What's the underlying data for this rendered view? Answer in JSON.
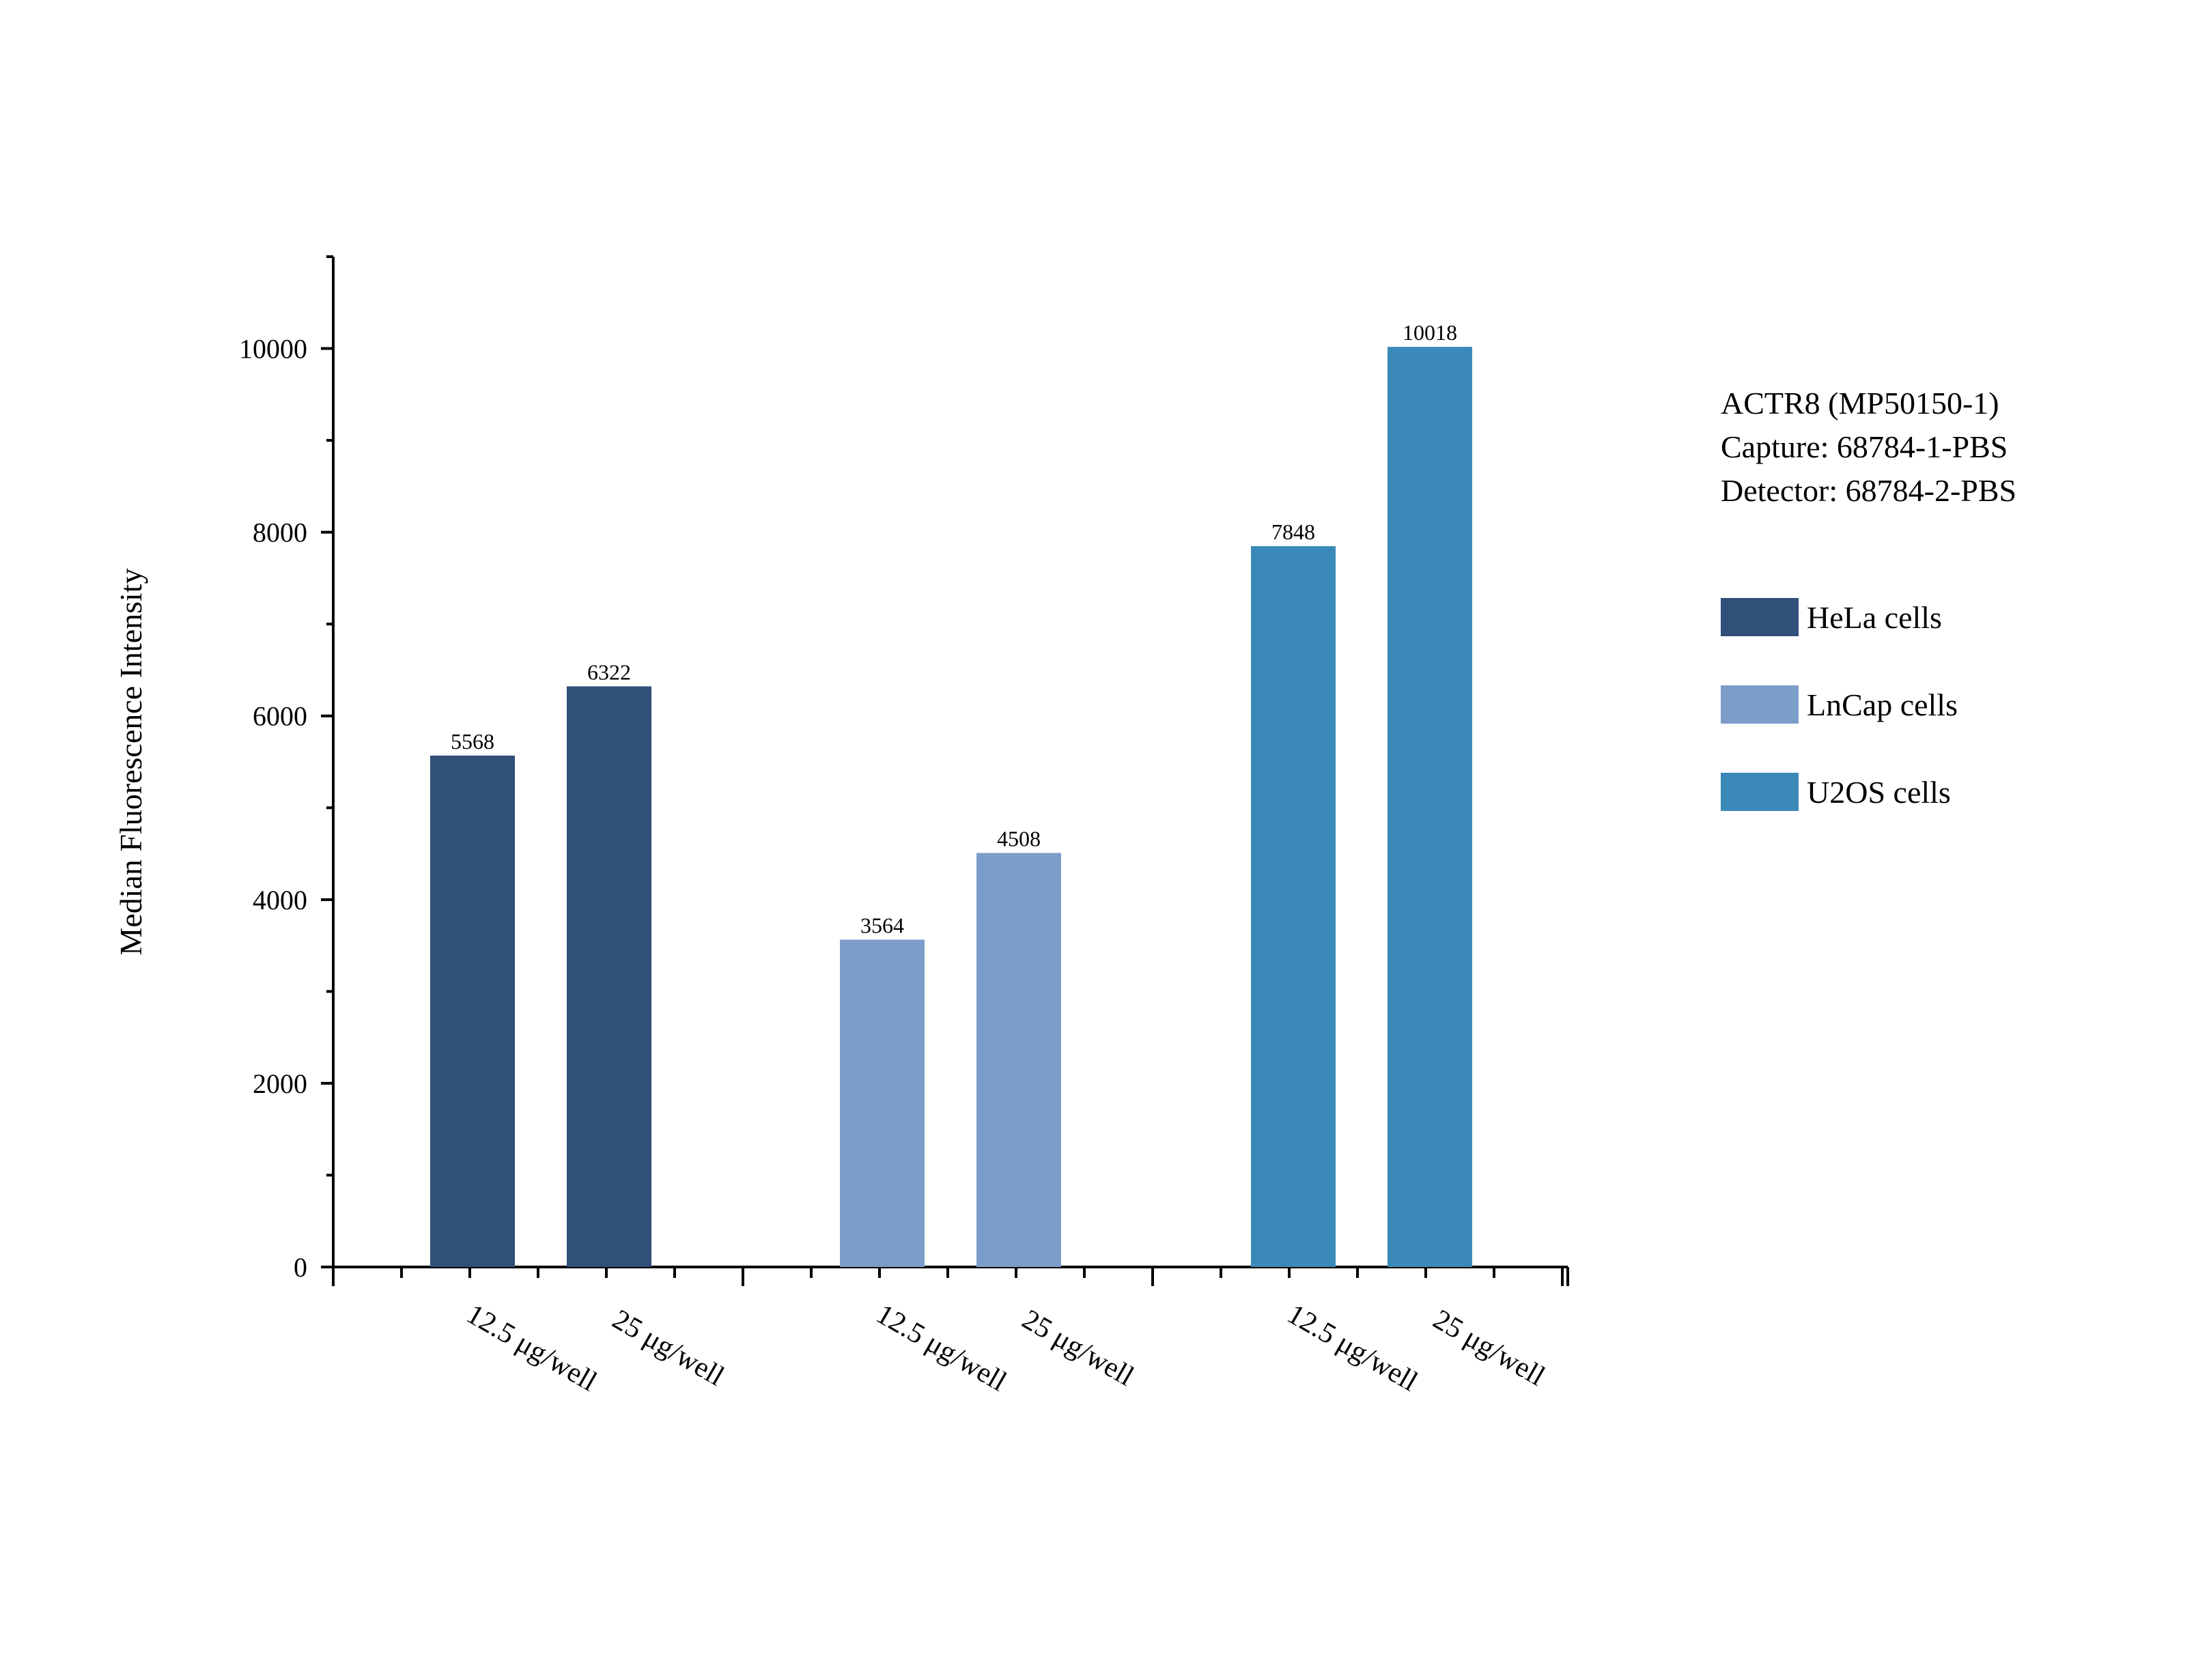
{
  "chart_data": {
    "type": "bar",
    "title": "",
    "xlabel": "",
    "ylabel": "Median Fluorescence Intensity",
    "ylim": [
      0,
      11000
    ],
    "yticks": [
      0,
      2000,
      4000,
      6000,
      8000,
      10000
    ],
    "grid": false,
    "legend_position": "right",
    "info_lines": [
      "ACTR8 (MP50150-1)",
      "Capture: 68784-1-PBS",
      "Detector: 68784-2-PBS"
    ],
    "categories": [
      "12.5 μg/well",
      "25 μg/well"
    ],
    "series": [
      {
        "name": "HeLa cells",
        "color": "#304f79",
        "values": [
          5568,
          6322
        ]
      },
      {
        "name": "LnCap cells",
        "color": "#7c9dca",
        "values": [
          3564,
          4508
        ]
      },
      {
        "name": "U2OS cells",
        "color": "#3b89b8",
        "values": [
          7848,
          10018
        ]
      }
    ]
  }
}
